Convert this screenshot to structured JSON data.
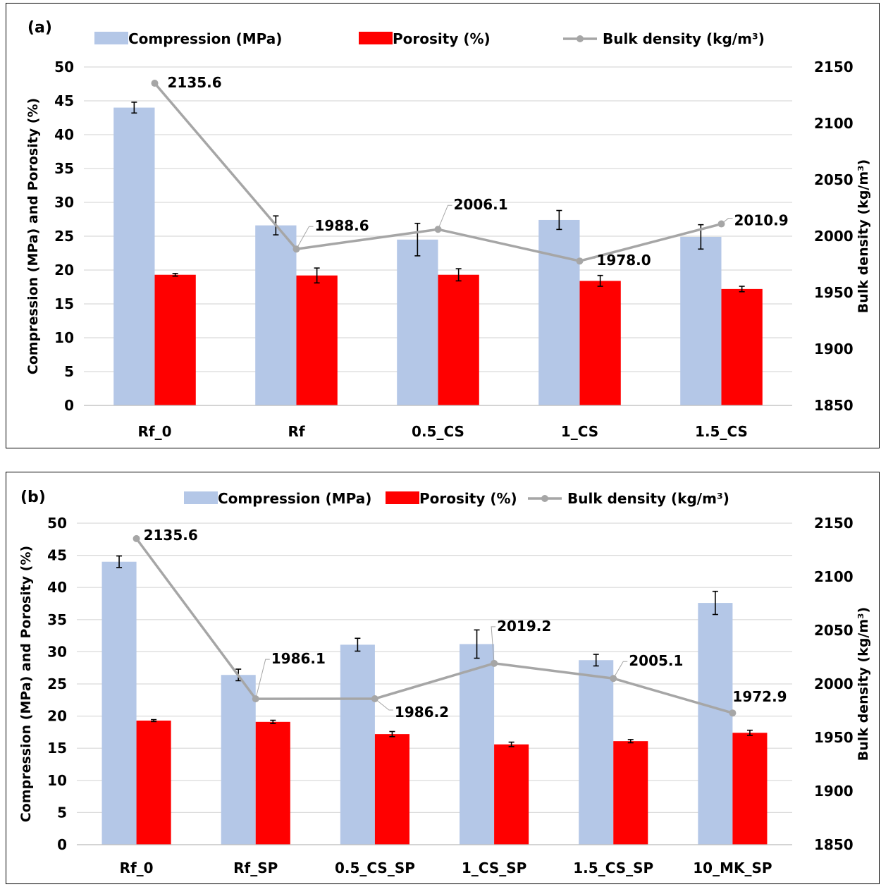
{
  "chart_data": [
    {
      "panel_label": "(a)",
      "type": "bar",
      "categories": [
        "Rf_0",
        "Rf",
        "0.5_CS",
        "1_CS",
        "1.5_CS"
      ],
      "ylabel": "Compression (MPa) and Porosity (%)",
      "y2label": "Bulk density (kg/m³)",
      "ylim": [
        0,
        50
      ],
      "yticks": [
        0,
        5,
        10,
        15,
        20,
        25,
        30,
        35,
        40,
        45,
        50
      ],
      "y2lim": [
        1850,
        2150
      ],
      "y2ticks": [
        1850,
        1900,
        1950,
        2000,
        2050,
        2100,
        2150
      ],
      "grid": true,
      "legend_position": "top",
      "series": [
        {
          "name": "Compression (MPa)",
          "kind": "bar",
          "color": "#b4c7e7",
          "values": [
            44.0,
            26.6,
            24.5,
            27.4,
            24.9
          ],
          "errors": [
            0.8,
            1.4,
            2.4,
            1.4,
            1.8
          ]
        },
        {
          "name": "Porosity (%)",
          "kind": "bar",
          "color": "#ff0000",
          "values": [
            19.3,
            19.2,
            19.3,
            18.4,
            17.2
          ],
          "errors": [
            0.2,
            1.1,
            0.9,
            0.8,
            0.4
          ]
        },
        {
          "name": "Bulk density (kg/m³)",
          "kind": "line",
          "axis": "right",
          "color": "#a6a6a6",
          "values": [
            2135.6,
            1988.6,
            2006.1,
            1978.0,
            2010.9
          ],
          "labels": [
            "2135.6",
            "1988.6",
            "2006.1",
            "1978.0",
            "2010.9"
          ]
        }
      ]
    },
    {
      "panel_label": "(b)",
      "type": "bar",
      "categories": [
        "Rf_0",
        "Rf_SP",
        "0.5_CS_SP",
        "1_CS_SP",
        "1.5_CS_SP",
        "10_MK_SP"
      ],
      "ylabel": "Compression (MPa) and Porosity (%)",
      "y2label": "Bulk density (kg/m³)",
      "ylim": [
        0,
        50
      ],
      "yticks": [
        0,
        5,
        10,
        15,
        20,
        25,
        30,
        35,
        40,
        45,
        50
      ],
      "y2lim": [
        1850,
        2150
      ],
      "y2ticks": [
        1850,
        1900,
        1950,
        2000,
        2050,
        2100,
        2150
      ],
      "grid": true,
      "legend_position": "top",
      "series": [
        {
          "name": "Compression (MPa)",
          "kind": "bar",
          "color": "#b4c7e7",
          "values": [
            44.0,
            26.4,
            31.1,
            31.2,
            28.7,
            37.6
          ],
          "errors": [
            0.9,
            0.9,
            1.0,
            2.2,
            0.9,
            1.8
          ]
        },
        {
          "name": "Porosity (%)",
          "kind": "bar",
          "color": "#ff0000",
          "values": [
            19.3,
            19.1,
            17.2,
            15.6,
            16.1,
            17.4
          ],
          "errors": [
            0.15,
            0.25,
            0.4,
            0.35,
            0.25,
            0.4
          ]
        },
        {
          "name": "Bulk density (kg/m³)",
          "kind": "line",
          "axis": "right",
          "color": "#a6a6a6",
          "values": [
            2135.6,
            1986.1,
            1986.2,
            2019.2,
            2005.1,
            1972.9
          ],
          "labels": [
            "2135.6",
            "1986.1",
            "1986.2",
            "2019.2",
            "2005.1",
            "1972.9"
          ]
        }
      ]
    }
  ]
}
